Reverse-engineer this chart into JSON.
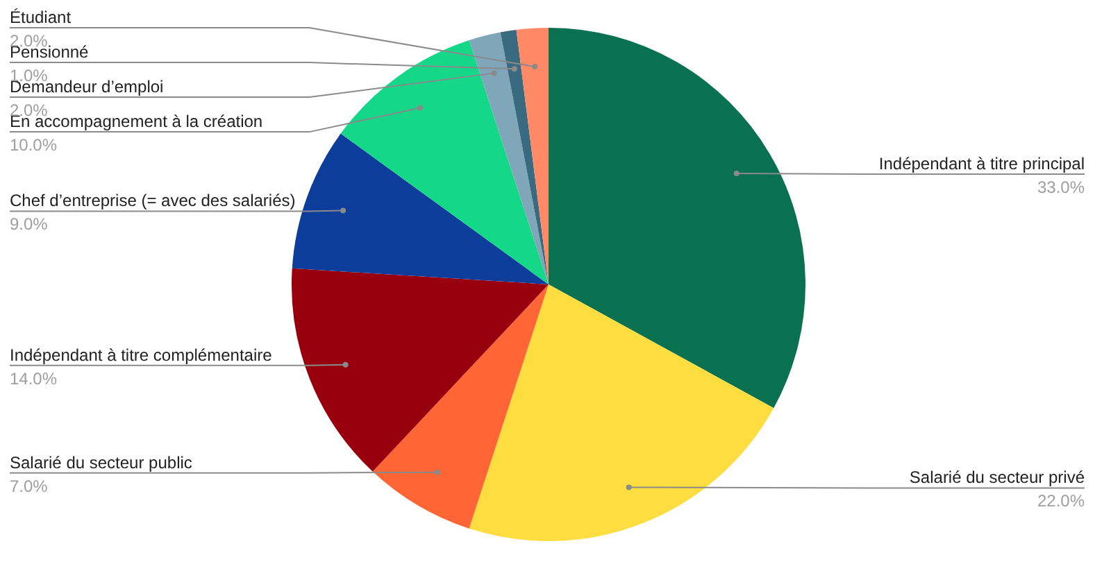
{
  "chart_data": {
    "type": "pie",
    "categories": [
      "Indépendant à titre principal",
      "Salarié du secteur privé",
      "Salarié du secteur public",
      "Indépendant à titre complémentaire",
      "Chef d’entreprise (= avec des salariés)",
      "En accompagnement à la création",
      "Demandeur d’emploi",
      "Pensionné",
      "Étudiant"
    ],
    "values": [
      33,
      22,
      7,
      14,
      9,
      10,
      2,
      1,
      2
    ],
    "colors": [
      "#0a7150",
      "#fddd40",
      "#ff6535",
      "#98000e",
      "#0d3d9b",
      "#14d888",
      "#7fa6b9",
      "#3a6a80",
      "#ff8a65"
    ],
    "value_labels": [
      "33.0%",
      "22.0%",
      "7.0%",
      "14.0%",
      "9.0%",
      "10.0%",
      "2.0%",
      "1.0%",
      "2.0%"
    ]
  }
}
